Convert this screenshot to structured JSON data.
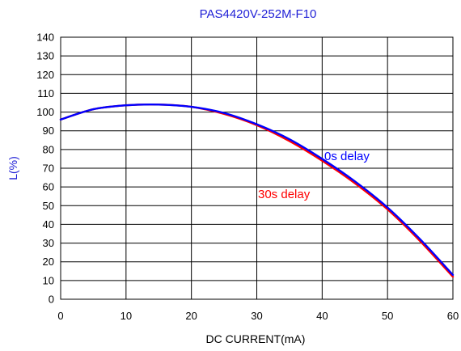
{
  "chart_data": {
    "type": "line",
    "title": "PAS4420V-252M-F10",
    "xlabel": "DC CURRENT(mA)",
    "ylabel": "L(%)",
    "xlim": [
      0,
      60
    ],
    "ylim": [
      0,
      140
    ],
    "x_ticks": [
      "0",
      "10",
      "20",
      "30",
      "40",
      "50",
      "60"
    ],
    "y_ticks": [
      "0",
      "10",
      "20",
      "30",
      "40",
      "50",
      "60",
      "70",
      "80",
      "90",
      "100",
      "110",
      "120",
      "130",
      "140"
    ],
    "grid": true,
    "series": [
      {
        "name": "0s delay",
        "color": "#0000ff",
        "x": [
          0,
          5,
          10,
          15,
          20,
          25,
          30,
          35,
          40,
          45,
          50,
          55,
          60
        ],
        "y": [
          96,
          101.5,
          103.6,
          104,
          102.8,
          99.5,
          93.5,
          85.5,
          75,
          63,
          49,
          32,
          13
        ]
      },
      {
        "name": "30s delay",
        "color": "#ff0000",
        "x": [
          0,
          5,
          10,
          15,
          20,
          25,
          30,
          35,
          40,
          45,
          50,
          55,
          60
        ],
        "y": [
          96,
          101.5,
          103.6,
          104,
          102.8,
          99,
          93,
          84.5,
          74,
          62,
          48,
          31,
          12
        ]
      }
    ],
    "annotations": [
      {
        "text": "0s delay",
        "color": "#0000ff"
      },
      {
        "text": "30s delay",
        "color": "#ff0000"
      }
    ]
  }
}
